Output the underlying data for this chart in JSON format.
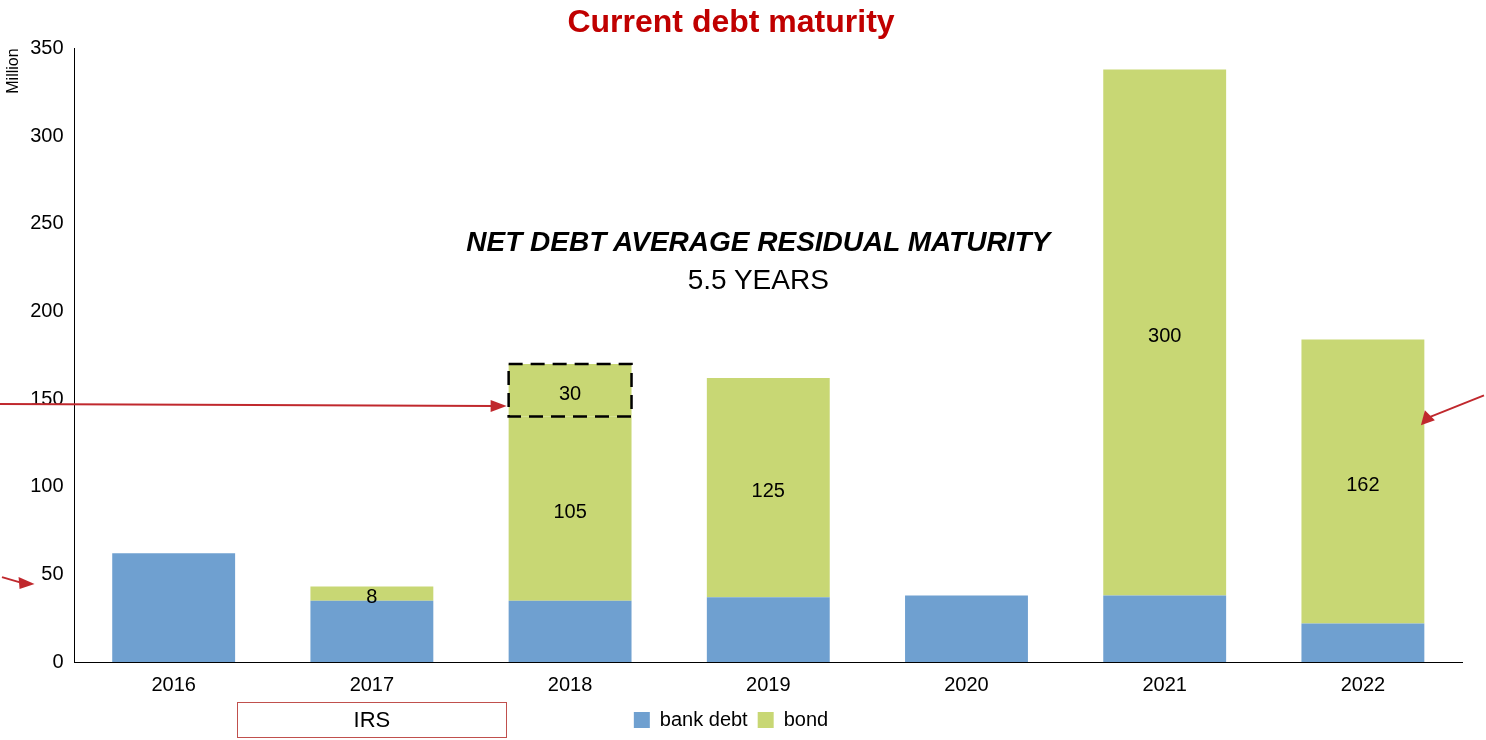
{
  "chart_data": {
    "type": "bar",
    "title": "Current debt maturity",
    "ylabel": "Million",
    "categories": [
      "2016",
      "2017",
      "2018",
      "2019",
      "2020",
      "2021",
      "2022"
    ],
    "stacked": true,
    "ylim": [
      0,
      350
    ],
    "yticks": [
      0,
      50,
      100,
      150,
      200,
      250,
      300,
      350
    ],
    "grid": false,
    "legend": "bottom",
    "series": [
      {
        "name": "bank debt",
        "color": "#6fa0d0",
        "values": [
          62,
          35,
          35,
          37,
          38,
          38,
          22
        ],
        "value_labels": [
          null,
          null,
          null,
          null,
          null,
          null,
          null
        ]
      },
      {
        "name": "bond",
        "color": "#c8d774",
        "values": [
          null,
          8,
          105,
          125,
          null,
          300,
          162
        ],
        "value_labels": [
          null,
          "8",
          "105",
          "125",
          null,
          "300",
          "162"
        ]
      },
      {
        "color": "#c8d774",
        "values": [
          null,
          null,
          30,
          null,
          null,
          null,
          null
        ],
        "value_labels": [
          null,
          null,
          "30",
          null,
          null,
          null,
          null
        ]
      }
    ],
    "annotations": [
      "NET DEBT AVERAGE RESIDUAL MATURITY",
      "5.5 YEARS",
      "IRS"
    ]
  }
}
